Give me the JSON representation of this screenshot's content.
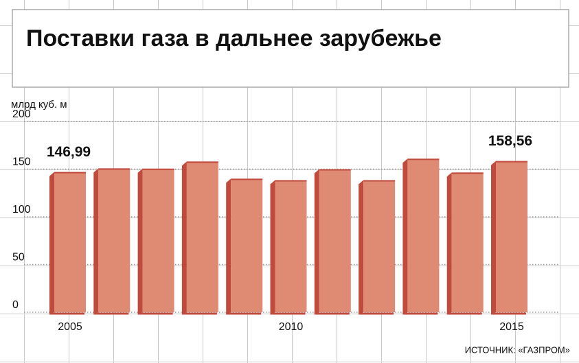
{
  "chart_data": {
    "type": "bar",
    "title": "Поставки газа в дальнее зарубежье",
    "y_label": "млрд куб. м",
    "source": "ИСТОЧНИК: «ГАЗПРОМ»",
    "categories": [
      "2005",
      null,
      null,
      null,
      null,
      "2010",
      null,
      null,
      null,
      null,
      "2015"
    ],
    "values": [
      146.99,
      150.8,
      150.5,
      158.0,
      140.0,
      138.5,
      150.0,
      138.5,
      161.0,
      146.5,
      158.56
    ],
    "value_labels": [
      "146,99",
      null,
      null,
      null,
      null,
      null,
      null,
      null,
      null,
      null,
      "158,56"
    ],
    "color": "#df8a73",
    "side_color": "#c04a3c",
    "ylim": [
      0,
      200
    ],
    "yticks": [
      0,
      50,
      100,
      150,
      200
    ],
    "grid": true
  }
}
